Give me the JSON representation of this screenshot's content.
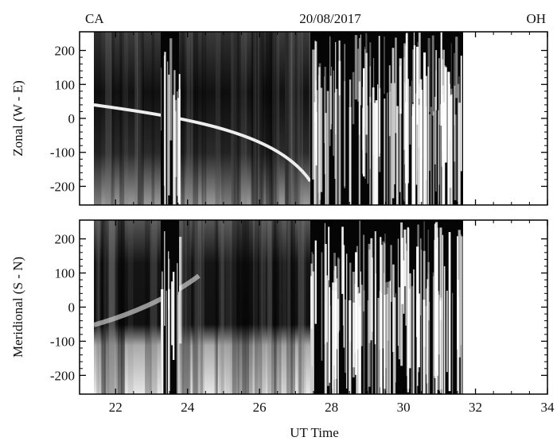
{
  "chart_data": [
    {
      "type": "image",
      "title": "20/08/2017",
      "annotations": [
        "CA",
        "OH"
      ],
      "ylabel": "Zonal (W - E)",
      "xlim": [
        21,
        34
      ],
      "xticks": [
        22,
        24,
        26,
        28,
        30,
        32,
        34
      ],
      "ylim": [
        -255,
        255
      ],
      "yticks": [
        -200,
        -100,
        0,
        100,
        200
      ]
    },
    {
      "type": "image",
      "xlabel": "UT Time",
      "ylabel": "Meridional (S - N)",
      "xlim": [
        21,
        34
      ],
      "xticks": [
        22,
        24,
        26,
        28,
        30,
        32,
        34
      ],
      "ylim": [
        -255,
        255
      ],
      "yticks": [
        -200,
        -100,
        0,
        100,
        200
      ]
    }
  ]
}
